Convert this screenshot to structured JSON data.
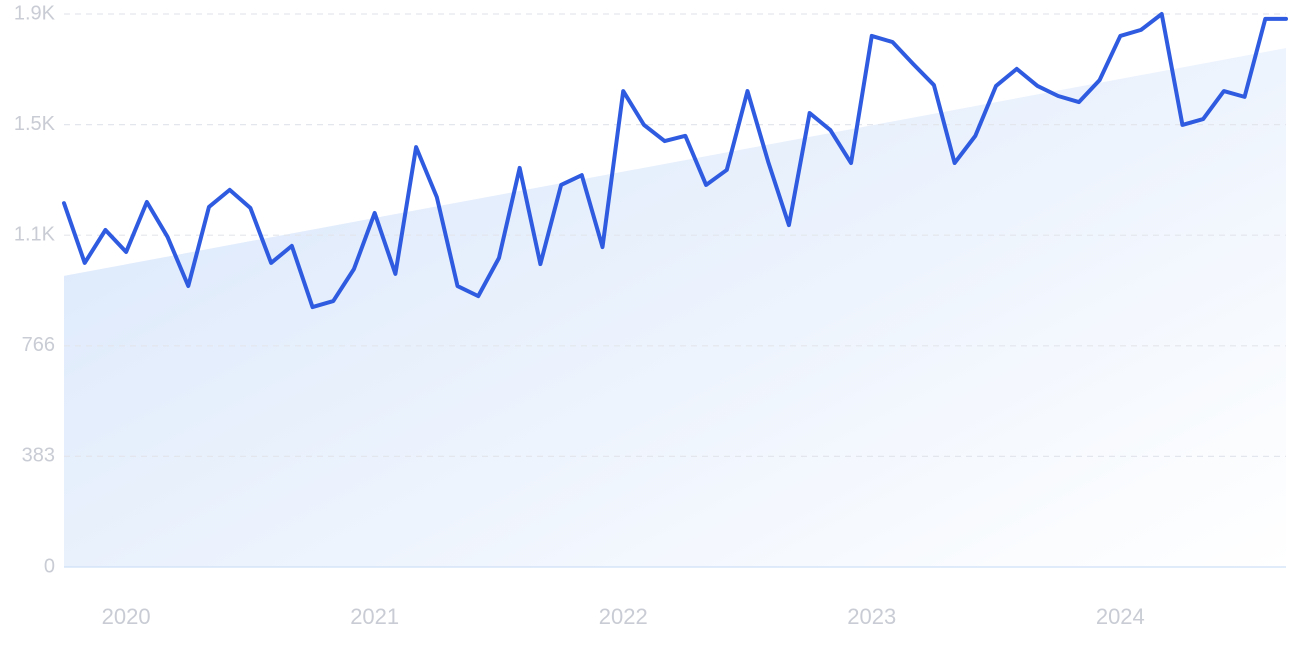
{
  "chart_data": {
    "type": "line",
    "categories": [
      null,
      null,
      null,
      "2020",
      null,
      null,
      null,
      null,
      null,
      null,
      null,
      null,
      null,
      null,
      null,
      "2021",
      null,
      null,
      null,
      null,
      null,
      null,
      null,
      null,
      null,
      null,
      null,
      "2022",
      null,
      null,
      null,
      null,
      null,
      null,
      null,
      null,
      null,
      null,
      null,
      "2023",
      null,
      null,
      null,
      null,
      null,
      null,
      null,
      null,
      null,
      null,
      null,
      "2024",
      null,
      null,
      null,
      null,
      null,
      null,
      null,
      null
    ],
    "series": [
      {
        "color": "#2f5be0",
        "values": [
          1260,
          1053,
          1167,
          1091,
          1264,
          1143,
          973,
          1247,
          1306,
          1243,
          1053,
          1112,
          900,
          921,
          1032,
          1226,
          1015,
          1454,
          1281,
          973,
          938,
          1070,
          1382,
          1049,
          1323,
          1357,
          1108,
          1648,
          1531,
          1475,
          1493,
          1323,
          1375,
          1648,
          1403,
          1184,
          1572,
          1513,
          1399,
          1839,
          1818,
          1742,
          1669,
          1399,
          1493,
          1666,
          1725,
          1666,
          1631,
          1610,
          1686,
          1839,
          1860,
          1915,
          1531,
          1551,
          1648,
          1628,
          1898,
          1898
        ]
      }
    ],
    "trend": {
      "color": "#dbe8fb",
      "values": [
        1008,
        1797
      ]
    },
    "ylim": [
      0,
      1915
    ],
    "yticks": [
      0,
      383,
      766,
      {
        "value": 1149,
        "label": "1.1K"
      },
      {
        "value": 1532,
        "label": "1.5K"
      },
      {
        "value": 1915,
        "label": "1.9K"
      }
    ],
    "grid": true
  }
}
